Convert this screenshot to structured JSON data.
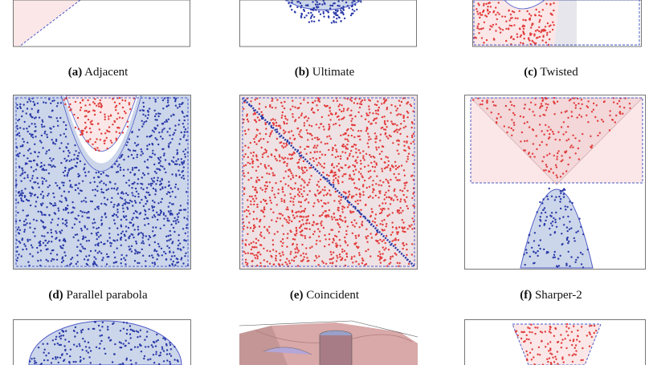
{
  "figure": {
    "captions": [
      {
        "tag": "(a)",
        "text": "Adjacent"
      },
      {
        "tag": "(b)",
        "text": "Ultimate"
      },
      {
        "tag": "(c)",
        "text": "Twisted"
      },
      {
        "tag": "(d)",
        "text": "Parallel parabola"
      },
      {
        "tag": "(e)",
        "text": "Coincident"
      },
      {
        "tag": "(f)",
        "text": "Sharper-2"
      }
    ],
    "colors": {
      "red_points": "#e23b3b",
      "blue_points": "#2a3aa8",
      "red_fill": "#fbe7e7",
      "blue_fill": "#ccd6ea",
      "boundary": "#4a58c8"
    }
  }
}
